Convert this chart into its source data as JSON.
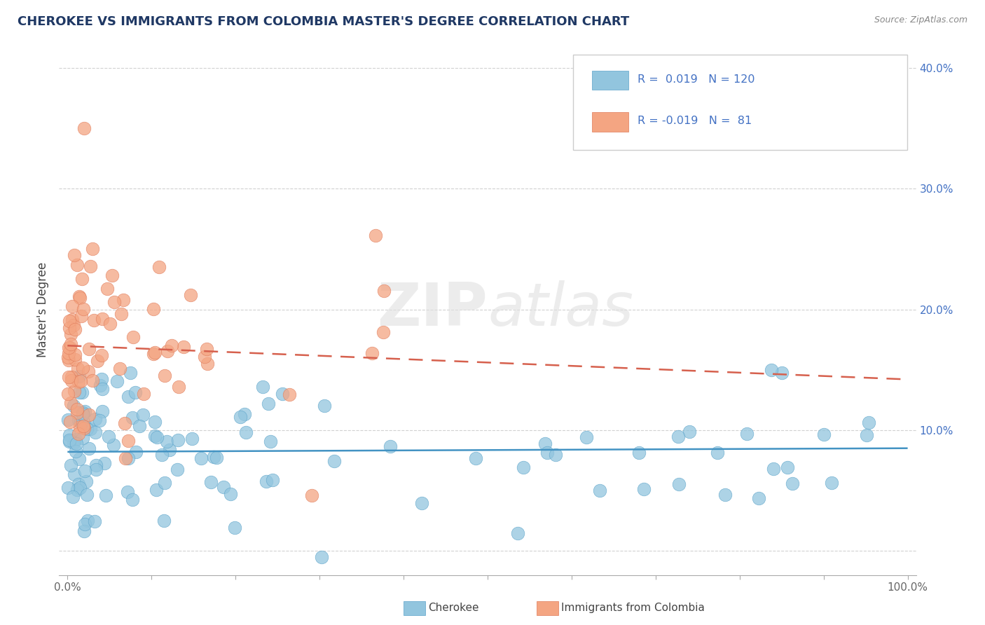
{
  "title": "CHEROKEE VS IMMIGRANTS FROM COLOMBIA MASTER'S DEGREE CORRELATION CHART",
  "source_text": "Source: ZipAtlas.com",
  "ylabel": "Master's Degree",
  "watermark_zip": "ZIP",
  "watermark_atlas": "atlas",
  "xlim": [
    -1,
    101
  ],
  "ylim": [
    -2,
    42
  ],
  "xticks": [
    0,
    10,
    20,
    30,
    40,
    50,
    60,
    70,
    80,
    90,
    100
  ],
  "xticklabels": [
    "0.0%",
    "",
    "",
    "",
    "",
    "",
    "",
    "",
    "",
    "",
    "100.0%"
  ],
  "yticks": [
    0,
    10,
    20,
    30,
    40
  ],
  "yticklabels": [
    "",
    "10.0%",
    "20.0%",
    "30.0%",
    "40.0%"
  ],
  "cherokee_color": "#92c5de",
  "cherokee_edge_color": "#5ba3c9",
  "colombia_color": "#f4a582",
  "colombia_edge_color": "#e07b5a",
  "cherokee_line_color": "#4393c3",
  "colombia_line_color": "#d6604d",
  "cherokee_R": 0.019,
  "cherokee_N": 120,
  "colombia_R": -0.019,
  "colombia_N": 81,
  "cherokee_intercept": 8.2,
  "cherokee_slope": 0.003,
  "colombia_intercept": 17.0,
  "colombia_slope": -0.028
}
